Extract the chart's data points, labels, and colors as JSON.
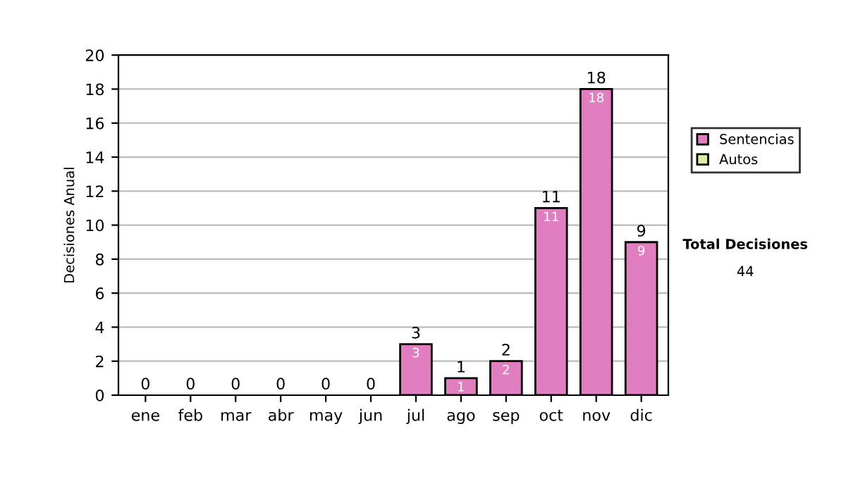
{
  "chart_data": {
    "type": "bar",
    "ylabel": "Decisiones Anual",
    "categories": [
      "ene",
      "feb",
      "mar",
      "abr",
      "may",
      "jun",
      "jul",
      "ago",
      "sep",
      "oct",
      "nov",
      "dic"
    ],
    "stacked": true,
    "series": [
      {
        "name": "Sentencias",
        "color": "#e07ec0",
        "values": [
          0,
          0,
          0,
          0,
          0,
          0,
          3,
          1,
          2,
          11,
          18,
          9
        ],
        "value_labels": [
          null,
          null,
          null,
          null,
          null,
          null,
          "3",
          "1",
          "2",
          "11",
          "18",
          "9"
        ]
      },
      {
        "name": "Autos",
        "color": "#d9f0a3",
        "values": [
          0,
          0,
          0,
          0,
          0,
          0,
          0,
          0,
          0,
          0,
          0,
          0
        ]
      }
    ],
    "totals": [
      "0",
      "0",
      "0",
      "0",
      "0",
      "0",
      "3",
      "1",
      "2",
      "11",
      "18",
      "9"
    ],
    "ylim": [
      0,
      20
    ],
    "yticks": [
      0,
      2,
      4,
      6,
      8,
      10,
      12,
      14,
      16,
      18,
      20
    ],
    "grid": "y",
    "legend": "right",
    "annotations": [
      "Total Decisiones",
      "44"
    ]
  }
}
